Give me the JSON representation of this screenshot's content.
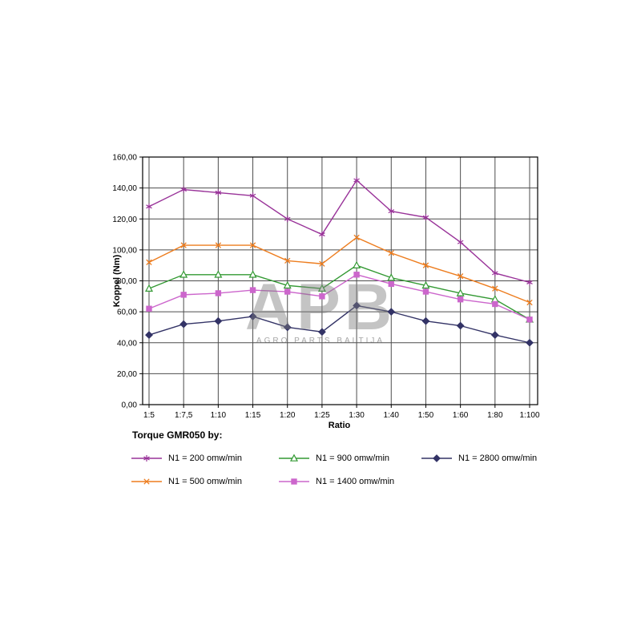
{
  "page": {
    "background": "#ffffff"
  },
  "watermark": {
    "line1": "APB",
    "line2": "AGRO PARTS BALTIJA"
  },
  "chart_data": {
    "type": "line",
    "title": "Torque GMR050 by:",
    "xlabel": "Ratio",
    "ylabel": "Koppel (Nm)",
    "ylim": [
      0,
      160
    ],
    "y_tick_step": 20,
    "y_tick_labels": [
      "0,00",
      "20,00",
      "40,00",
      "60,00",
      "80,00",
      "100,00",
      "120,00",
      "140,00",
      "160,00"
    ],
    "categories": [
      "1:5",
      "1:7,5",
      "1:10",
      "1:15",
      "1:20",
      "1:25",
      "1:30",
      "1:40",
      "1:50",
      "1:60",
      "1:80",
      "1:100"
    ],
    "grid": true,
    "grid_color": "#4d4d4d",
    "frame_color": "#000000",
    "legend_position": "bottom",
    "series": [
      {
        "name": "N1 = 200 omw/min",
        "color": "#993399",
        "marker": "asterisk",
        "values": [
          128,
          139,
          137,
          135,
          120,
          110,
          145,
          125,
          121,
          105,
          85,
          79
        ]
      },
      {
        "name": "N1 = 500 omw/min",
        "color": "#ED7D1F",
        "marker": "x",
        "values": [
          92,
          103,
          103,
          103,
          93,
          91,
          108,
          98,
          90,
          83,
          75,
          66
        ]
      },
      {
        "name": "N1 = 900 omw/min",
        "color": "#339933",
        "marker": "triangle-open",
        "values": [
          75,
          84,
          84,
          84,
          77,
          75,
          90,
          82,
          77,
          72,
          68,
          55
        ]
      },
      {
        "name": "N1 = 1400 omw/min",
        "color": "#CC66CC",
        "marker": "square",
        "values": [
          62,
          71,
          72,
          74,
          73,
          70,
          84,
          78,
          73,
          68,
          65,
          55
        ]
      },
      {
        "name": "N1 = 2800 omw/min",
        "color": "#333366",
        "marker": "diamond",
        "values": [
          45,
          52,
          54,
          57,
          50,
          47,
          64,
          60,
          54,
          51,
          45,
          40
        ]
      }
    ]
  }
}
